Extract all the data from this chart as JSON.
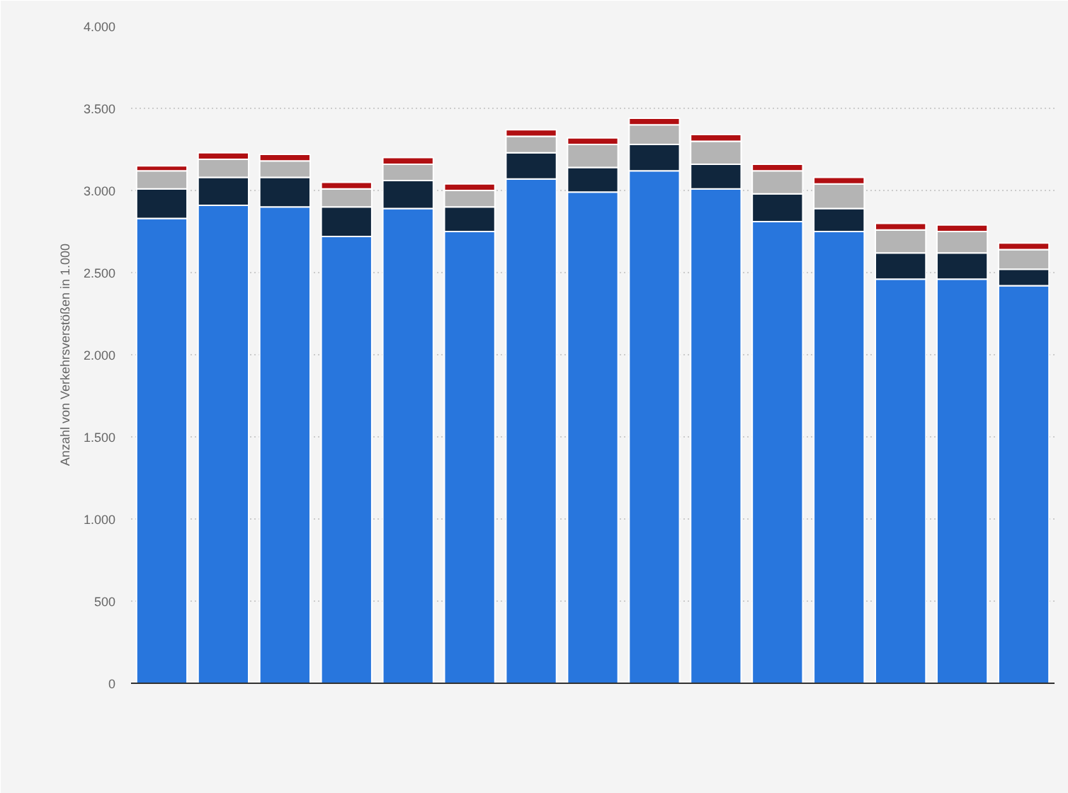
{
  "chart_data": {
    "type": "bar",
    "stacked": true,
    "ylabel": "Anzahl von Verkehrsverstößen in 1.000",
    "categories": [
      null,
      null,
      null,
      null,
      null,
      null,
      null,
      null,
      null,
      null,
      null,
      null,
      null,
      null,
      null
    ],
    "series": [
      {
        "color": "#2876dd",
        "values": [
          2830,
          2910,
          2900,
          2720,
          2890,
          2750,
          3070,
          2990,
          3120,
          3010,
          2810,
          2750,
          2460,
          2460,
          2420
        ]
      },
      {
        "color": "#10263d",
        "values": [
          180,
          170,
          180,
          180,
          170,
          150,
          160,
          150,
          160,
          150,
          170,
          140,
          160,
          160,
          100
        ]
      },
      {
        "color": "#b4b4b4",
        "values": [
          110,
          110,
          100,
          110,
          100,
          100,
          100,
          140,
          120,
          140,
          140,
          150,
          140,
          130,
          120
        ]
      },
      {
        "color": "#b10f12",
        "values": [
          30,
          40,
          40,
          40,
          40,
          40,
          40,
          40,
          40,
          40,
          40,
          40,
          40,
          40,
          40
        ]
      }
    ],
    "ylim": [
      0,
      4000
    ],
    "yticks": [
      {
        "value": 0,
        "label": "0"
      },
      {
        "value": 500,
        "label": "500"
      },
      {
        "value": 1000,
        "label": "1.000"
      },
      {
        "value": 1500,
        "label": "1.500"
      },
      {
        "value": 2000,
        "label": "2.000"
      },
      {
        "value": 2500,
        "label": "2.500"
      },
      {
        "value": 3000,
        "label": "3.000"
      },
      {
        "value": 3500,
        "label": "3.500"
      },
      {
        "value": 4000,
        "label": "4.000"
      }
    ],
    "grid": "y"
  }
}
